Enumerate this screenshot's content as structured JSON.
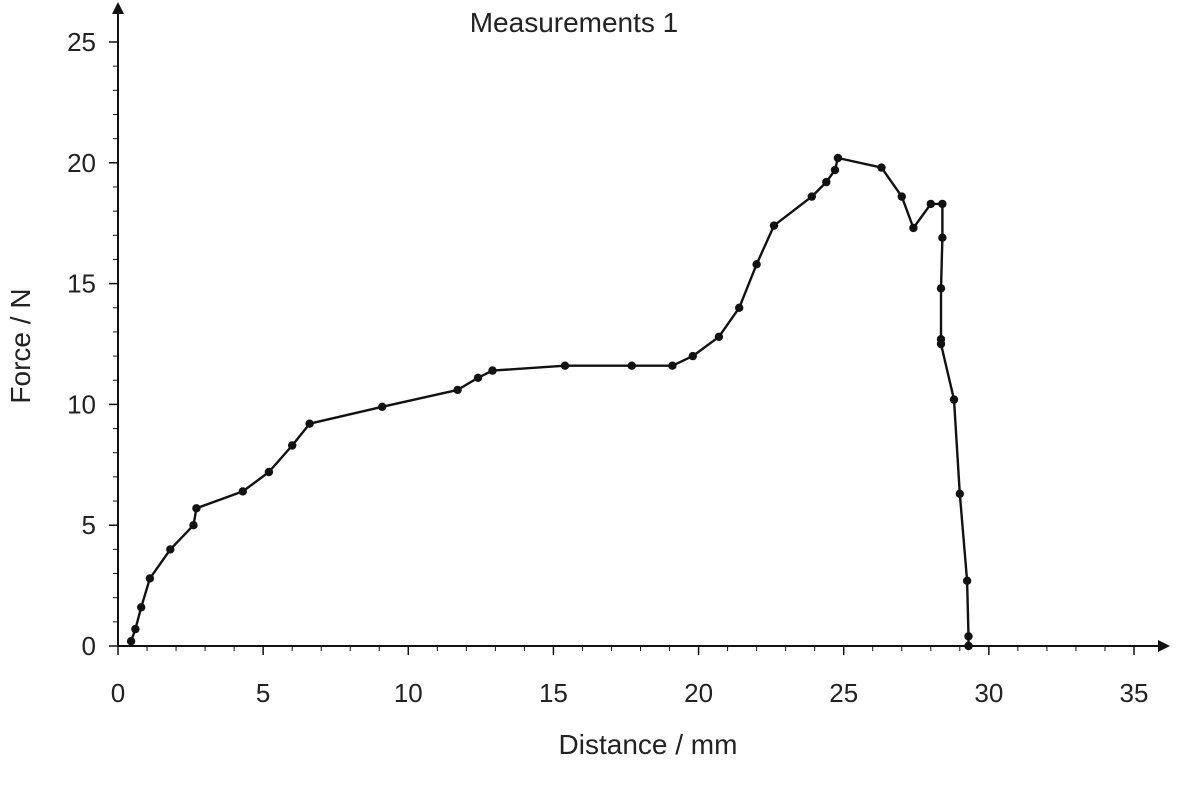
{
  "chart_data": {
    "type": "line",
    "title": "Measurements 1",
    "xlabel": "Distance / mm",
    "ylabel": "Force / N",
    "xlim": [
      0,
      35
    ],
    "ylim": [
      0,
      25
    ],
    "xticks": [
      0,
      5,
      10,
      15,
      20,
      25,
      30,
      35
    ],
    "yticks": [
      0,
      5,
      10,
      15,
      20,
      25
    ],
    "grid": false,
    "line_color": "#111111",
    "series": [
      {
        "x": [
          0.45,
          0.6,
          0.8,
          1.1,
          1.8,
          2.6,
          2.7,
          4.3,
          5.2,
          6.0,
          6.6,
          9.1,
          11.7,
          12.4,
          12.9,
          15.4,
          17.7,
          19.1,
          19.8,
          20.7,
          21.4,
          22.0,
          22.6,
          23.9,
          24.4,
          24.7,
          24.8,
          26.3,
          27.0,
          27.4,
          28.0,
          28.4,
          28.4,
          28.35,
          28.35,
          28.35,
          28.8,
          29.0,
          29.25,
          29.3,
          29.3
        ],
        "y": [
          0.2,
          0.7,
          1.6,
          2.8,
          4.0,
          5.0,
          5.7,
          6.4,
          7.2,
          8.3,
          9.2,
          9.9,
          10.6,
          11.1,
          11.4,
          11.6,
          11.6,
          11.6,
          12.0,
          12.8,
          14.0,
          15.8,
          17.4,
          18.6,
          19.2,
          19.7,
          20.2,
          19.8,
          18.6,
          17.3,
          18.3,
          18.3,
          16.9,
          14.8,
          12.7,
          12.5,
          10.2,
          6.3,
          2.7,
          0.4,
          0.0
        ]
      }
    ]
  }
}
